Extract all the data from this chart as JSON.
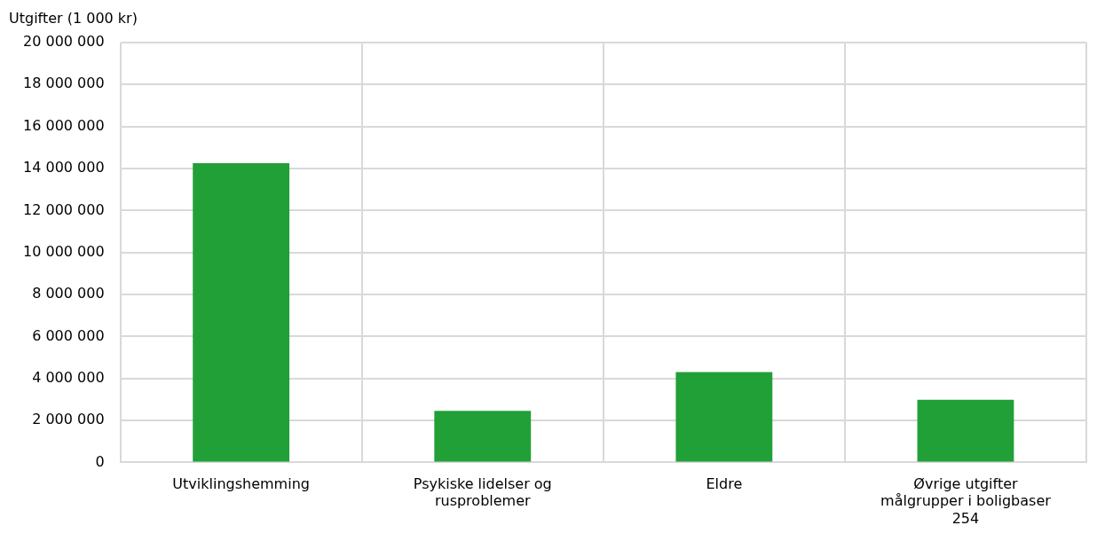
{
  "chart_data": {
    "type": "bar",
    "ylabel": "Utgifter (1 000 kr)",
    "categories": [
      "Utviklingshemming",
      "Psykiske lidelser og rusproblemer",
      "Eldre",
      "Øvrige utgifter målgrupper i boligbaser 254"
    ],
    "values": [
      14250000,
      2460000,
      4310000,
      2980000
    ],
    "color": "#21a038",
    "ylim": [
      0,
      20000000
    ],
    "yticks": [
      {
        "value": 0,
        "label": "0"
      },
      {
        "value": 2000000,
        "label": "2 000 000"
      },
      {
        "value": 4000000,
        "label": "4 000 000"
      },
      {
        "value": 6000000,
        "label": "6 000 000"
      },
      {
        "value": 8000000,
        "label": "8 000 000"
      },
      {
        "value": 10000000,
        "label": "10 000 000"
      },
      {
        "value": 12000000,
        "label": "12 000 000"
      },
      {
        "value": 14000000,
        "label": "14 000 000"
      },
      {
        "value": 16000000,
        "label": "16 000 000"
      },
      {
        "value": 18000000,
        "label": "18 000 000"
      },
      {
        "value": 20000000,
        "label": "20 000 000"
      }
    ],
    "grid": true,
    "legend": false
  }
}
